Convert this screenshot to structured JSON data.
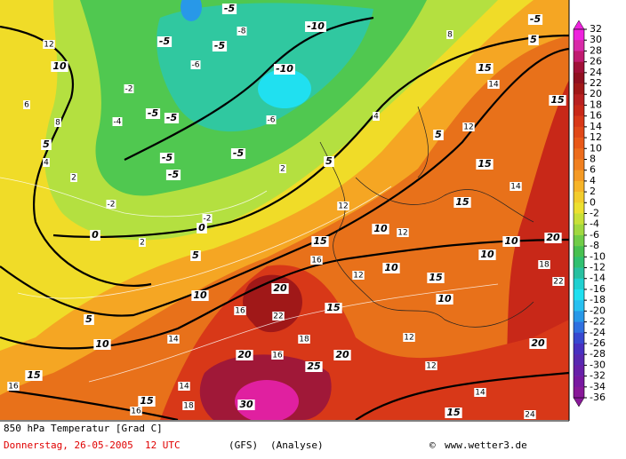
{
  "header": {
    "title": "850 hPa Temperatur [Grad C]",
    "date": "Donnerstag, 26-05-2005  12 UTC",
    "model": "(GFS)",
    "run": "(Analyse)",
    "copyright": "©",
    "site": "www.wetter3.de"
  },
  "colorbar": {
    "ticks": [
      32,
      30,
      28,
      26,
      24,
      22,
      20,
      18,
      16,
      14,
      12,
      10,
      8,
      6,
      4,
      2,
      0,
      -2,
      -4,
      -6,
      -8,
      -10,
      -12,
      -14,
      -16,
      -18,
      -20,
      -22,
      -24,
      -26,
      -28,
      -30,
      -32,
      -34,
      -36
    ],
    "colors": [
      "#ee22dd",
      "#d82aa8",
      "#c01a70",
      "#a01038",
      "#901020",
      "#a01818",
      "#b82020",
      "#c82818",
      "#d83818",
      "#e04818",
      "#e85818",
      "#ec6c1c",
      "#f08020",
      "#f49a24",
      "#f6b428",
      "#f2cc2c",
      "#ece030",
      "#c8e038",
      "#a0d840",
      "#70cc48",
      "#48c050",
      "#30c070",
      "#28c0a0",
      "#20d0d0",
      "#20e0f0",
      "#28c0f0",
      "#2898e8",
      "#3070e0",
      "#3848d0",
      "#4830c0",
      "#5828b0",
      "#6820a8",
      "#7818a0",
      "#881898"
    ]
  },
  "contour_labels": [
    -5,
    -10,
    -5,
    -5,
    10,
    -10,
    15,
    -5,
    -5,
    5,
    -5,
    -5,
    -5,
    0,
    0,
    5,
    10,
    5,
    10,
    15,
    15,
    30,
    20,
    25,
    20,
    20,
    15,
    15,
    10,
    10,
    15,
    10,
    10,
    10,
    15,
    15,
    15,
    20,
    20,
    15,
    5,
    5,
    5,
    -5
  ],
  "isotherm_labels": [
    12,
    6,
    8,
    4,
    2,
    -4,
    -2,
    -6,
    -8,
    -6,
    2,
    4,
    8,
    14,
    12,
    14,
    12,
    12,
    16,
    12,
    16,
    22,
    18,
    14,
    16,
    12,
    14,
    14,
    16,
    18,
    24,
    -2,
    2,
    -2,
    18,
    22,
    12,
    16
  ]
}
